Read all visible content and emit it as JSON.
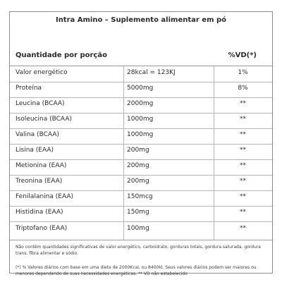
{
  "title": "Intra Amino – Suplemento alimentar em pó",
  "header": {
    "portion_label": "Quantidade por porção",
    "vd_label": "%VD(*)"
  },
  "rows": [
    {
      "name": "Valor energético",
      "amount": "28kcal = 123KJ",
      "vd": "1%"
    },
    {
      "name": "Proteína",
      "amount": "5000mg",
      "vd": "8%"
    },
    {
      "name": "Leucina (BCAA)",
      "amount": "2000mg",
      "vd": "**"
    },
    {
      "name": "Isoleucina (BCAA)",
      "amount": "1000mg",
      "vd": "**"
    },
    {
      "name": "Valina (BCAA)",
      "amount": "1000mg",
      "vd": "**"
    },
    {
      "name": "Lisina (EAA)",
      "amount": "200mg",
      "vd": "**"
    },
    {
      "name": "Metionina (EAA)",
      "amount": "200mg",
      "vd": "**"
    },
    {
      "name": "Treonina (EAA)",
      "amount": "200mg",
      "vd": "**"
    },
    {
      "name": "Fenilalanina (EAA)",
      "amount": "150mcg",
      "vd": "**"
    },
    {
      "name": "Histidina (EAA)",
      "amount": "150mg",
      "vd": "**"
    },
    {
      "name": "Triptofano (EAA)",
      "amount": "100mg",
      "vd": "**"
    }
  ],
  "notes": {
    "note1": "Não contêm quantidades significativas de valor energético, carboidrato, gorduras totais, gordura saturada, gordura trans, fibra alimentar e sódio.",
    "note2": "(*) % Valores diários com base em uma dieta de 2000Kcal, ou 8400kl. Seus valores diários podem ser maiores ou menores dependendo de suas necessidades energéticas. ** VD não estabelecido"
  }
}
